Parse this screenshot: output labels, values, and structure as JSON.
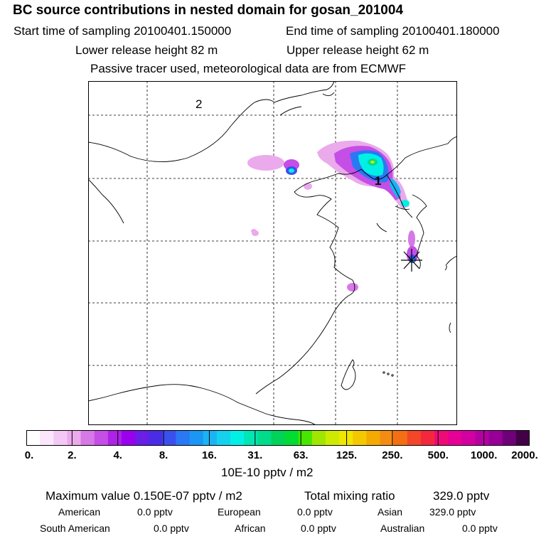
{
  "header": {
    "title": "BC  source contributions in nested domain for gosan_201004",
    "start_label": "Start time of sampling 20100401.150000",
    "end_label": "End time of sampling 20100401.180000",
    "lower_release": "Lower release height   82 m",
    "upper_release": "Upper release height   62 m",
    "tracer_note": "Passive tracer used, meteorological data are from ECMWF"
  },
  "map": {
    "domain_label": "2",
    "inner_label": "1"
  },
  "colorbar": {
    "colors": [
      "#ffffff",
      "#fbe6fb",
      "#f4c8f4",
      "#ebaaeb",
      "#d678e6",
      "#c44ee6",
      "#ad22e6",
      "#9a00ee",
      "#6a1ee6",
      "#4b2ce6",
      "#3a50ee",
      "#2a78f4",
      "#1a96f4",
      "#1ab4f4",
      "#14d2ee",
      "#00f0e6",
      "#00e6b4",
      "#00dc8a",
      "#00d25a",
      "#00dc32",
      "#46e600",
      "#a0e600",
      "#cceb00",
      "#f0e600",
      "#f4c800",
      "#f4aa00",
      "#f48c14",
      "#f46e14",
      "#f44628",
      "#f4283c",
      "#f00a78",
      "#e60096",
      "#d200a0",
      "#b400a0",
      "#960096",
      "#6e0078",
      "#420046"
    ],
    "ticks": [
      "0.",
      "2.",
      "4.",
      "8.",
      "16.",
      "31.",
      "63.",
      "125.",
      "250.",
      "500.",
      "1000.",
      "2000."
    ],
    "units": "10E-10 pptv / m2"
  },
  "summary": {
    "max_label": "Maximum value  0.150E-07 pptv / m2",
    "total_label": "Total mixing ratio",
    "total_value": "329.0 pptv",
    "american_label": "American",
    "american_value": "0.0 pptv",
    "european_label": "European",
    "european_value": "0.0 pptv",
    "asian_label": "Asian",
    "asian_value": "329.0 pptv",
    "south_american_label": "South American",
    "south_american_value": "0.0 pptv",
    "african_label": "African",
    "african_value": "0.0 pptv",
    "australian_label": "Australian",
    "australian_value": "0.0 pptv"
  }
}
